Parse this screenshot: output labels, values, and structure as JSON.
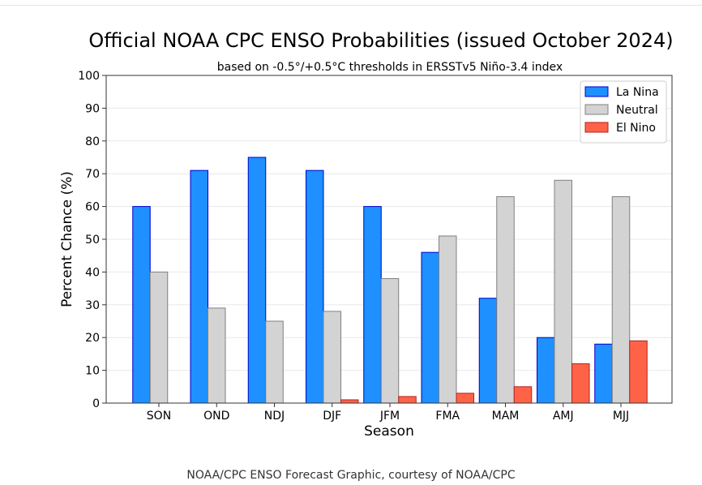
{
  "chart_data": {
    "type": "bar",
    "title": "Official NOAA CPC ENSO Probabilities (issued October 2024)",
    "subtitle": "based on -0.5°/+0.5°C thresholds in ERSSTv5 Niño-3.4 index",
    "xlabel": "Season",
    "ylabel": "Percent Chance (%)",
    "ylim": [
      0,
      100
    ],
    "yticks": [
      0,
      10,
      20,
      30,
      40,
      50,
      60,
      70,
      80,
      90,
      100
    ],
    "grid": true,
    "legend_position": "top-right",
    "categories": [
      "SON",
      "OND",
      "NDJ",
      "DJF",
      "JFM",
      "FMA",
      "MAM",
      "AMJ",
      "MJJ"
    ],
    "series": [
      {
        "name": "La Nina",
        "color": "#1e90ff",
        "edge": "#0000cd",
        "values": [
          60,
          71,
          75,
          71,
          60,
          46,
          32,
          20,
          18
        ]
      },
      {
        "name": "Neutral",
        "color": "#d3d3d3",
        "edge": "#808080",
        "values": [
          40,
          29,
          25,
          28,
          38,
          51,
          63,
          68,
          63
        ]
      },
      {
        "name": "El Nino",
        "color": "#ff6347",
        "edge": "#b22222",
        "values": [
          0,
          0,
          0,
          1,
          2,
          3,
          5,
          12,
          19
        ]
      }
    ]
  },
  "footer": {
    "caption": "NOAA/CPC ENSO Forecast Graphic, courtesy of NOAA/CPC"
  }
}
